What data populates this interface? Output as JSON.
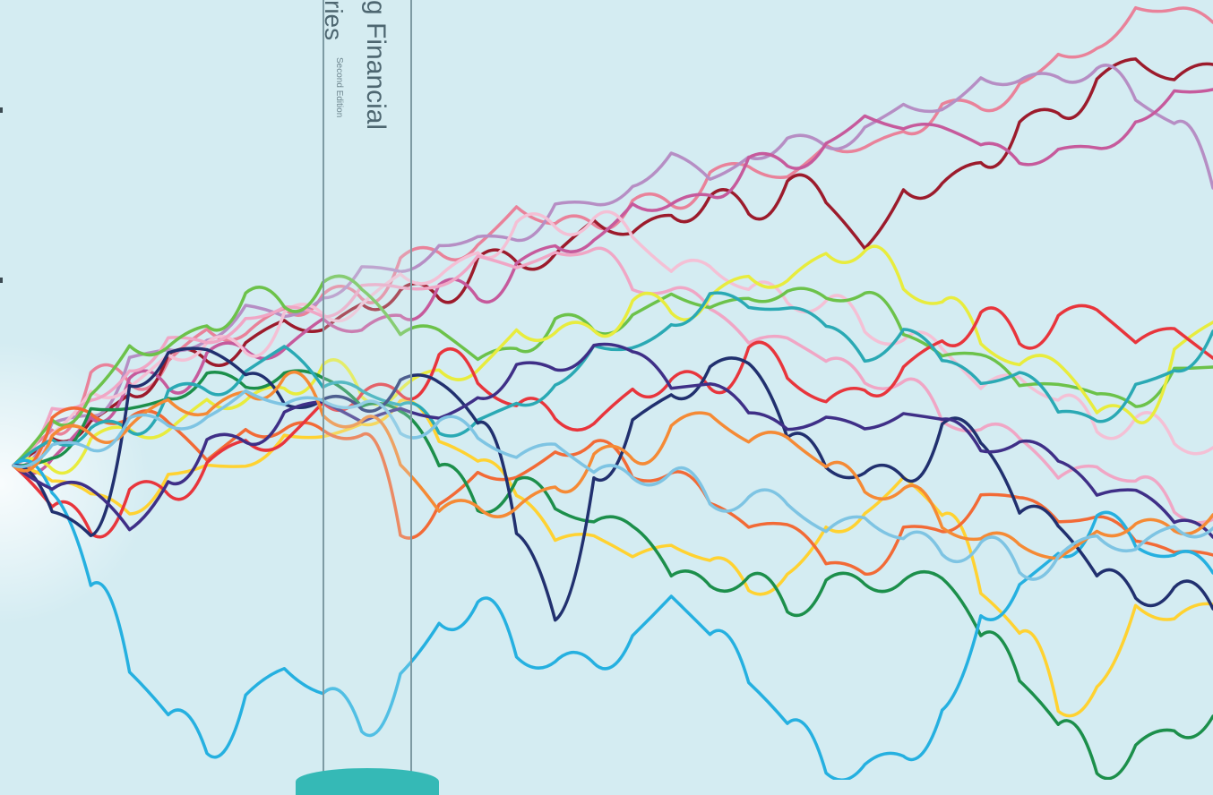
{
  "spine": {
    "title_fragment": "g Financial",
    "subtitle_fragment": "ries",
    "edition_fragment": "Second Edition"
  },
  "colors": {
    "background": "#d4ecf2",
    "spine_line": "#7d9aa3",
    "spine_text": "#4d6670",
    "spine_foot": "#35b9b6"
  },
  "paths": [
    {
      "color": "#e9829a",
      "y": [
        520,
        470,
        430,
        420,
        400,
        380,
        360,
        350,
        335,
        320,
        300,
        280,
        265,
        245,
        240,
        250,
        235,
        215,
        200,
        190,
        185,
        175,
        160,
        140,
        130,
        110,
        95,
        70,
        40,
        18,
        12,
        25
      ]
    },
    {
      "color": "#9c1b2c",
      "y": [
        520,
        500,
        470,
        430,
        410,
        395,
        380,
        370,
        355,
        345,
        330,
        320,
        300,
        290,
        275,
        260,
        250,
        240,
        230,
        225,
        210,
        230,
        265,
        225,
        200,
        175,
        150,
        115,
        90,
        75,
        75,
        72
      ]
    },
    {
      "color": "#b68ec4",
      "y": [
        520,
        480,
        450,
        410,
        390,
        370,
        355,
        345,
        330,
        310,
        290,
        280,
        270,
        255,
        240,
        225,
        200,
        185,
        190,
        175,
        165,
        150,
        150,
        120,
        110,
        100,
        85,
        80,
        90,
        100,
        140,
        210
      ]
    },
    {
      "color": "#c65a9c",
      "y": [
        520,
        500,
        470,
        430,
        420,
        405,
        390,
        380,
        370,
        360,
        350,
        330,
        320,
        300,
        280,
        255,
        240,
        225,
        210,
        190,
        175,
        160,
        140,
        130,
        150,
        165,
        170,
        180,
        160,
        130,
        115,
        100
      ]
    },
    {
      "color": "#f4c0d5",
      "y": [
        520,
        480,
        450,
        420,
        400,
        390,
        380,
        360,
        350,
        330,
        320,
        300,
        280,
        260,
        240,
        250,
        270,
        290,
        310,
        320,
        330,
        350,
        360,
        380,
        400,
        420,
        430,
        450,
        470,
        480,
        490,
        500
      ]
    },
    {
      "color": "#f0a6c5",
      "y": [
        520,
        470,
        440,
        410,
        390,
        370,
        360,
        350,
        340,
        330,
        320,
        310,
        300,
        290,
        280,
        290,
        310,
        330,
        350,
        370,
        390,
        400,
        420,
        440,
        460,
        480,
        500,
        520,
        530,
        540,
        560,
        580
      ]
    },
    {
      "color": "#6cc24a",
      "y": [
        520,
        470,
        430,
        400,
        380,
        360,
        340,
        330,
        320,
        330,
        360,
        380,
        400,
        380,
        370,
        360,
        350,
        340,
        330,
        340,
        330,
        320,
        340,
        370,
        390,
        410,
        420,
        430,
        450,
        440,
        420,
        410
      ]
    },
    {
      "color": "#e8ec3d",
      "y": [
        520,
        510,
        500,
        480,
        470,
        460,
        440,
        430,
        420,
        430,
        440,
        420,
        400,
        380,
        370,
        360,
        350,
        340,
        330,
        320,
        300,
        290,
        285,
        310,
        350,
        380,
        400,
        420,
        450,
        470,
        400,
        360
      ]
    },
    {
      "color": "#ffd231",
      "y": [
        520,
        540,
        560,
        560,
        540,
        520,
        510,
        500,
        480,
        470,
        460,
        480,
        520,
        560,
        590,
        610,
        620,
        600,
        640,
        650,
        640,
        600,
        560,
        540,
        580,
        650,
        720,
        790,
        760,
        690,
        680,
        675
      ]
    },
    {
      "color": "#f26a36",
      "y": [
        520,
        480,
        450,
        470,
        480,
        500,
        490,
        480,
        470,
        500,
        590,
        560,
        540,
        520,
        510,
        500,
        520,
        540,
        560,
        580,
        600,
        620,
        640,
        600,
        580,
        560,
        560,
        570,
        590,
        600,
        610,
        620
      ]
    },
    {
      "color": "#e8353c",
      "y": [
        520,
        560,
        590,
        560,
        540,
        520,
        500,
        480,
        460,
        440,
        430,
        410,
        420,
        450,
        480,
        460,
        440,
        430,
        420,
        400,
        420,
        440,
        450,
        400,
        380,
        360,
        370,
        360,
        350,
        370,
        380,
        400
      ]
    },
    {
      "color": "#1c8f4b",
      "y": [
        520,
        500,
        470,
        450,
        440,
        430,
        420,
        420,
        430,
        440,
        470,
        520,
        560,
        550,
        560,
        580,
        600,
        630,
        660,
        650,
        670,
        660,
        650,
        640,
        660,
        700,
        760,
        820,
        850,
        840,
        820,
        800
      ]
    },
    {
      "color": "#2aa9b4",
      "y": [
        520,
        500,
        480,
        470,
        450,
        430,
        410,
        400,
        420,
        440,
        460,
        470,
        480,
        450,
        420,
        400,
        380,
        360,
        340,
        330,
        350,
        370,
        390,
        380,
        400,
        420,
        430,
        450,
        470,
        440,
        400,
        370
      ]
    },
    {
      "color": "#25b0e0",
      "y": [
        520,
        560,
        640,
        760,
        800,
        830,
        790,
        740,
        770,
        830,
        740,
        700,
        680,
        720,
        750,
        740,
        700,
        680,
        700,
        760,
        820,
        850,
        860,
        850,
        780,
        700,
        650,
        610,
        590,
        600,
        620,
        640
      ]
    },
    {
      "color": "#21306f",
      "y": [
        520,
        560,
        600,
        440,
        380,
        400,
        420,
        440,
        460,
        450,
        420,
        440,
        460,
        600,
        700,
        520,
        480,
        440,
        400,
        420,
        480,
        520,
        540,
        520,
        480,
        500,
        560,
        600,
        640,
        660,
        670,
        680
      ]
    },
    {
      "color": "#3f2f87",
      "y": [
        520,
        540,
        560,
        580,
        540,
        500,
        480,
        470,
        450,
        460,
        470,
        460,
        440,
        420,
        400,
        390,
        400,
        420,
        440,
        460,
        470,
        480,
        470,
        460,
        480,
        490,
        500,
        520,
        540,
        560,
        580,
        600
      ]
    },
    {
      "color": "#f58a35",
      "y": [
        520,
        500,
        480,
        470,
        460,
        450,
        440,
        430,
        450,
        480,
        520,
        560,
        580,
        560,
        540,
        520,
        500,
        480,
        470,
        480,
        500,
        520,
        540,
        560,
        580,
        600,
        620,
        610,
        600,
        590,
        580,
        575
      ]
    },
    {
      "color": "#7ec4e3",
      "y": [
        520,
        500,
        490,
        480,
        470,
        460,
        450,
        440,
        450,
        460,
        470,
        480,
        490,
        500,
        510,
        520,
        530,
        540,
        550,
        560,
        570,
        580,
        590,
        600,
        610,
        620,
        630,
        620,
        610,
        600,
        595,
        590
      ]
    }
  ]
}
